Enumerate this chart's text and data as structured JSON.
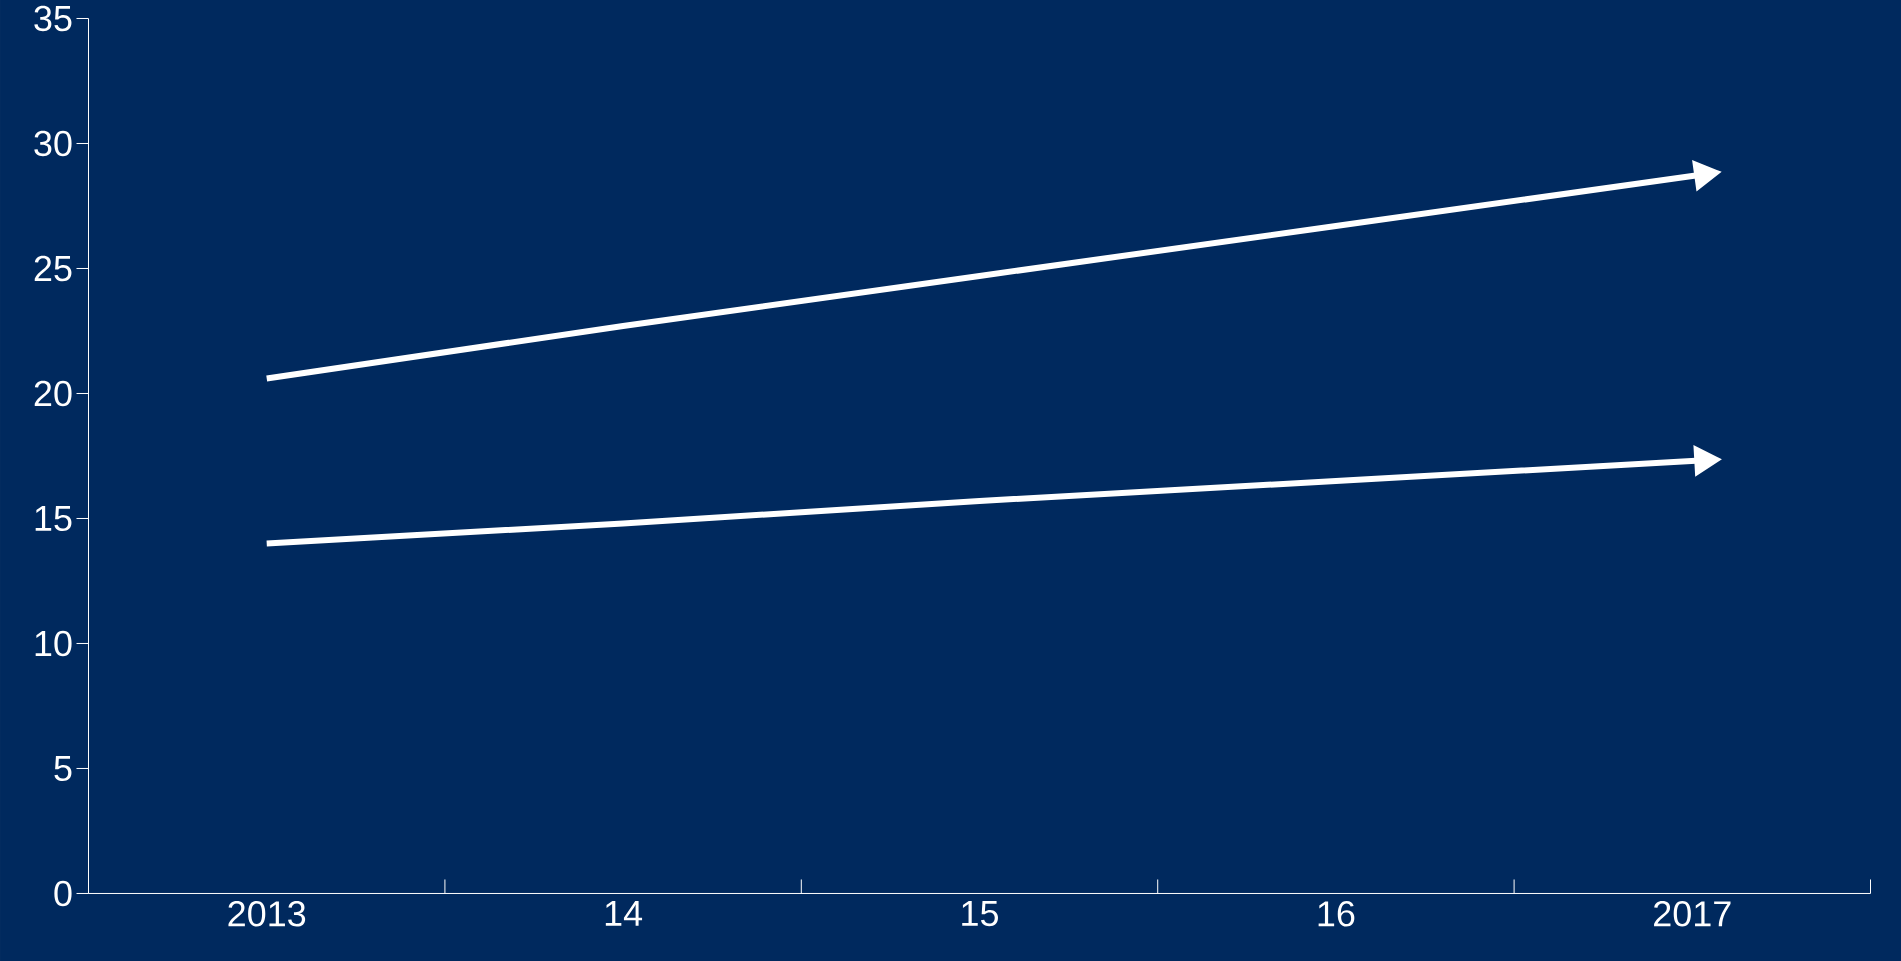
{
  "chart_data": {
    "type": "line",
    "categories": [
      "2013",
      "14",
      "15",
      "16",
      "2017"
    ],
    "series": [
      {
        "color": "#ffffff",
        "values": [
          20.6,
          22.7,
          24.7,
          26.7,
          28.7
        ]
      },
      {
        "color": "#ffffff",
        "values": [
          14.0,
          14.8,
          15.7,
          16.5,
          17.3
        ]
      }
    ],
    "ylim": [
      0,
      35
    ],
    "yticks": [
      0,
      5,
      10,
      15,
      20,
      25,
      30,
      35
    ]
  }
}
